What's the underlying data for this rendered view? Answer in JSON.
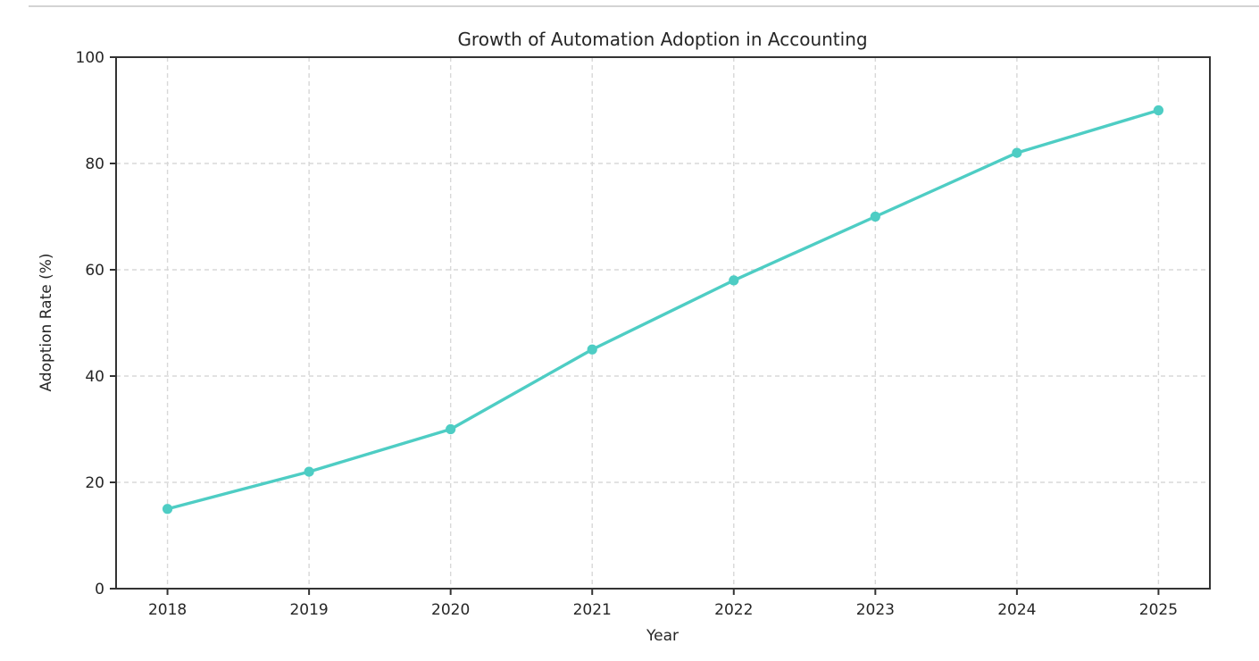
{
  "page": {
    "background_color": "#ffffff",
    "divider_color": "#d3d3d3"
  },
  "chart_data": {
    "type": "line",
    "title": "Growth of Automation Adoption in Accounting",
    "xlabel": "Year",
    "ylabel": "Adoption Rate (%)",
    "categories": [
      "2018",
      "2019",
      "2020",
      "2021",
      "2022",
      "2023",
      "2024",
      "2025"
    ],
    "values": [
      15,
      22,
      30,
      45,
      58,
      70,
      82,
      90
    ],
    "ylim": [
      0,
      100
    ],
    "yticks": [
      0,
      20,
      40,
      60,
      80,
      100
    ],
    "grid": "on",
    "grid_style": "dashed",
    "legend": "none",
    "line_color": "#4ecdc4",
    "marker": "circle",
    "marker_color": "#4ecdc4",
    "grid_color": "#d8d8d8",
    "axis_color": "#333333",
    "text_color": "#262626"
  }
}
